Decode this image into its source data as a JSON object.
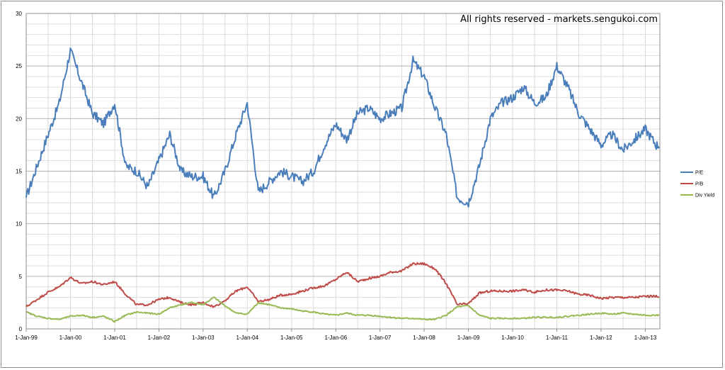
{
  "chart_data": {
    "type": "line",
    "title": "",
    "watermark": "All rights reserved - markets.sengukoi.com",
    "xlabel": "",
    "ylabel": "",
    "ylim": [
      0,
      30
    ],
    "y_ticks": [
      0,
      5,
      10,
      15,
      20,
      25,
      30
    ],
    "x_tick_labels": [
      "1-Jan-99",
      "1-Jan-00",
      "1-Jan-01",
      "1-Jan-02",
      "1-Jan-03",
      "1-Jan-04",
      "1-Jan-05",
      "1-Jan-06",
      "1-Jan-07",
      "1-Jan-08",
      "1-Jan-09",
      "1-Jan-10",
      "1-Jan-11",
      "1-Jan-12",
      "1-Jan-13"
    ],
    "x_range": [
      "1-Jan-99",
      "1-May-13"
    ],
    "grid": "horizontal",
    "legend_position": "right",
    "x": [
      "1-Jan-99",
      "1-Apr-99",
      "1-Jul-99",
      "1-Oct-99",
      "1-Jan-00",
      "1-Apr-00",
      "1-Jul-00",
      "1-Oct-00",
      "1-Jan-01",
      "1-Apr-01",
      "1-Jul-01",
      "1-Oct-01",
      "1-Jan-02",
      "1-Apr-02",
      "1-Jul-02",
      "1-Oct-02",
      "1-Jan-03",
      "1-Apr-03",
      "1-Jul-03",
      "1-Oct-03",
      "1-Jan-04",
      "1-Apr-04",
      "1-Jul-04",
      "1-Oct-04",
      "1-Jan-05",
      "1-Apr-05",
      "1-Jul-05",
      "1-Oct-05",
      "1-Jan-06",
      "1-Apr-06",
      "1-Jul-06",
      "1-Oct-06",
      "1-Jan-07",
      "1-Apr-07",
      "1-Jul-07",
      "1-Oct-07",
      "1-Jan-08",
      "1-Apr-08",
      "1-Jul-08",
      "1-Oct-08",
      "1-Jan-09",
      "1-Apr-09",
      "1-Jul-09",
      "1-Oct-09",
      "1-Jan-10",
      "1-Apr-10",
      "1-Jul-10",
      "1-Oct-10",
      "1-Jan-11",
      "1-Apr-11",
      "1-Jul-11",
      "1-Oct-11",
      "1-Jan-12",
      "1-Apr-12",
      "1-Jul-12",
      "1-Oct-12",
      "1-Jan-13",
      "1-Apr-13"
    ],
    "series": [
      {
        "name": "P/E",
        "color": "#4a7ebb",
        "values": [
          12.5,
          15.5,
          18.5,
          21.5,
          26.5,
          23.5,
          20.5,
          19.5,
          21.5,
          15.5,
          15.0,
          13.5,
          16.0,
          18.5,
          15.0,
          14.5,
          14.5,
          12.5,
          15.0,
          18.5,
          21.5,
          13.0,
          14.0,
          15.0,
          14.5,
          14.0,
          15.0,
          17.5,
          19.5,
          18.0,
          20.5,
          21.0,
          20.0,
          20.5,
          21.0,
          25.5,
          24.0,
          21.0,
          18.5,
          12.5,
          12.0,
          15.5,
          20.0,
          21.5,
          22.0,
          23.0,
          21.5,
          22.0,
          25.0,
          23.0,
          20.5,
          19.0,
          17.5,
          18.5,
          17.0,
          18.0,
          19.0,
          17.5
        ]
      },
      {
        "name": "P/B",
        "color": "#be4b48",
        "values": [
          2.1,
          2.8,
          3.5,
          4.0,
          4.9,
          4.3,
          4.5,
          4.2,
          4.5,
          3.3,
          2.3,
          2.3,
          2.8,
          3.0,
          2.5,
          2.3,
          2.5,
          2.1,
          2.7,
          3.6,
          4.0,
          2.6,
          2.8,
          3.2,
          3.3,
          3.6,
          3.9,
          4.1,
          4.7,
          5.4,
          4.5,
          4.8,
          5.0,
          5.4,
          5.5,
          6.2,
          6.2,
          5.7,
          4.3,
          2.3,
          2.4,
          3.4,
          3.6,
          3.6,
          3.6,
          3.7,
          3.5,
          3.7,
          3.7,
          3.6,
          3.3,
          3.2,
          2.9,
          3.0,
          3.0,
          3.0,
          3.1,
          3.1
        ]
      },
      {
        "name": "Div Yield",
        "color": "#98b954",
        "values": [
          1.6,
          1.2,
          1.0,
          0.9,
          1.2,
          1.3,
          1.1,
          1.2,
          0.7,
          1.3,
          1.6,
          1.5,
          1.4,
          2.0,
          2.3,
          2.5,
          2.3,
          3.0,
          2.2,
          1.5,
          1.4,
          2.5,
          2.3,
          2.0,
          1.9,
          1.7,
          1.6,
          1.4,
          1.3,
          1.5,
          1.3,
          1.3,
          1.2,
          1.1,
          1.0,
          1.0,
          0.9,
          0.9,
          1.3,
          2.1,
          2.2,
          1.3,
          1.0,
          1.0,
          1.0,
          1.0,
          1.1,
          1.1,
          1.1,
          1.2,
          1.3,
          1.4,
          1.5,
          1.4,
          1.5,
          1.4,
          1.3,
          1.3
        ]
      }
    ]
  }
}
